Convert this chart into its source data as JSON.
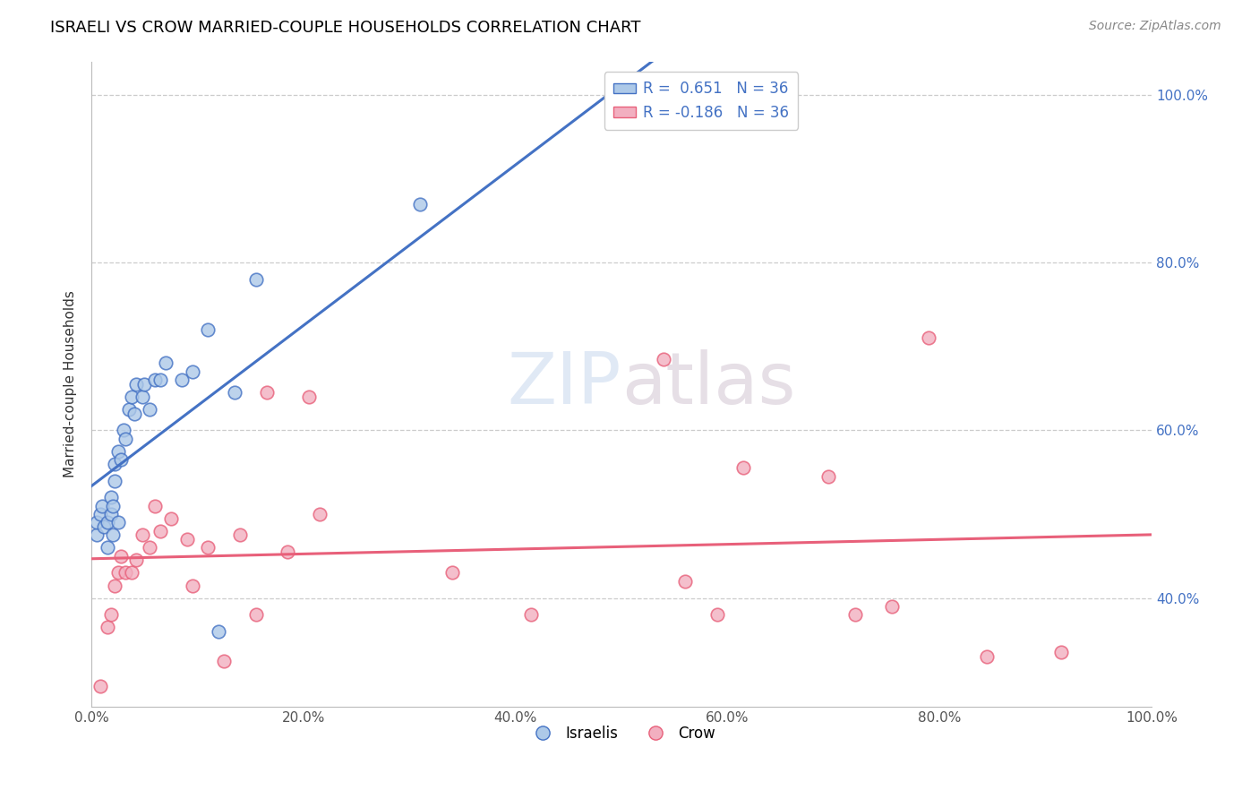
{
  "title": "ISRAELI VS CROW MARRIED-COUPLE HOUSEHOLDS CORRELATION CHART",
  "source": "Source: ZipAtlas.com",
  "ylabel": "Married-couple Households",
  "xlim": [
    0.0,
    1.0
  ],
  "ylim": [
    0.27,
    1.04
  ],
  "r_israeli": 0.651,
  "n_israeli": 36,
  "r_crow": -0.186,
  "n_crow": 36,
  "israeli_color": "#adc9e8",
  "crow_color": "#f2afc0",
  "line_israeli_color": "#4472c4",
  "line_crow_color": "#e8607a",
  "israeli_x": [
    0.005,
    0.005,
    0.008,
    0.01,
    0.012,
    0.015,
    0.015,
    0.018,
    0.018,
    0.02,
    0.02,
    0.022,
    0.022,
    0.025,
    0.025,
    0.028,
    0.03,
    0.032,
    0.035,
    0.038,
    0.04,
    0.042,
    0.048,
    0.05,
    0.055,
    0.06,
    0.065,
    0.07,
    0.085,
    0.095,
    0.11,
    0.12,
    0.135,
    0.155,
    0.31,
    0.54
  ],
  "israeli_y": [
    0.475,
    0.49,
    0.5,
    0.51,
    0.485,
    0.46,
    0.49,
    0.5,
    0.52,
    0.475,
    0.51,
    0.54,
    0.56,
    0.49,
    0.575,
    0.565,
    0.6,
    0.59,
    0.625,
    0.64,
    0.62,
    0.655,
    0.64,
    0.655,
    0.625,
    0.66,
    0.66,
    0.68,
    0.66,
    0.67,
    0.72,
    0.36,
    0.645,
    0.78,
    0.87,
    0.99
  ],
  "crow_x": [
    0.008,
    0.015,
    0.018,
    0.022,
    0.025,
    0.028,
    0.032,
    0.038,
    0.042,
    0.048,
    0.055,
    0.06,
    0.065,
    0.075,
    0.09,
    0.095,
    0.11,
    0.125,
    0.14,
    0.155,
    0.165,
    0.185,
    0.205,
    0.215,
    0.34,
    0.415,
    0.54,
    0.56,
    0.59,
    0.615,
    0.695,
    0.72,
    0.755,
    0.79,
    0.845,
    0.915
  ],
  "crow_y": [
    0.295,
    0.365,
    0.38,
    0.415,
    0.43,
    0.45,
    0.43,
    0.43,
    0.445,
    0.475,
    0.46,
    0.51,
    0.48,
    0.495,
    0.47,
    0.415,
    0.46,
    0.325,
    0.475,
    0.38,
    0.645,
    0.455,
    0.64,
    0.5,
    0.43,
    0.38,
    0.685,
    0.42,
    0.38,
    0.555,
    0.545,
    0.38,
    0.39,
    0.71,
    0.33,
    0.335
  ]
}
